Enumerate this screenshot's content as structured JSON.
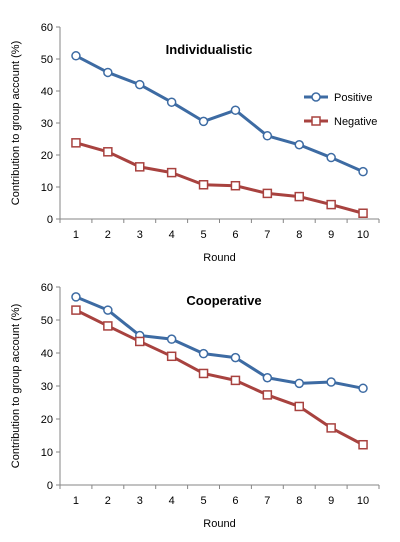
{
  "chart_data": [
    {
      "type": "line",
      "title": "Individualistic",
      "xlabel": "Round",
      "ylabel": "Contribution to group account (%)",
      "x": [
        1,
        2,
        3,
        4,
        5,
        6,
        7,
        8,
        9,
        10
      ],
      "ylim": [
        0,
        60
      ],
      "yticks": [
        0,
        10,
        20,
        30,
        40,
        50,
        60
      ],
      "grid": false,
      "legend": "right",
      "series": [
        {
          "name": "Positive",
          "color": "#3d6ba3",
          "marker": "circle",
          "values": [
            51,
            45.8,
            42,
            36.5,
            30.5,
            34,
            26,
            23.2,
            19.2,
            14.8
          ]
        },
        {
          "name": "Negative",
          "color": "#a8423f",
          "marker": "square",
          "values": [
            23.8,
            21,
            16.3,
            14.5,
            10.7,
            10.4,
            8,
            7,
            4.5,
            1.8
          ]
        }
      ]
    },
    {
      "type": "line",
      "title": "Cooperative",
      "xlabel": "Round",
      "ylabel": "Contribution to group account (%)",
      "x": [
        1,
        2,
        3,
        4,
        5,
        6,
        7,
        8,
        9,
        10
      ],
      "ylim": [
        0,
        60
      ],
      "yticks": [
        0,
        10,
        20,
        30,
        40,
        50,
        60
      ],
      "grid": false,
      "legend": "none",
      "series": [
        {
          "name": "Positive",
          "color": "#3d6ba3",
          "marker": "circle",
          "values": [
            57,
            53,
            45.3,
            44.2,
            39.8,
            38.6,
            32.5,
            30.8,
            31.2,
            29.3
          ]
        },
        {
          "name": "Negative",
          "color": "#a8423f",
          "marker": "square",
          "values": [
            53,
            48.2,
            43.5,
            39,
            33.8,
            31.7,
            27.3,
            23.8,
            17.3,
            12.2
          ]
        }
      ]
    }
  ]
}
